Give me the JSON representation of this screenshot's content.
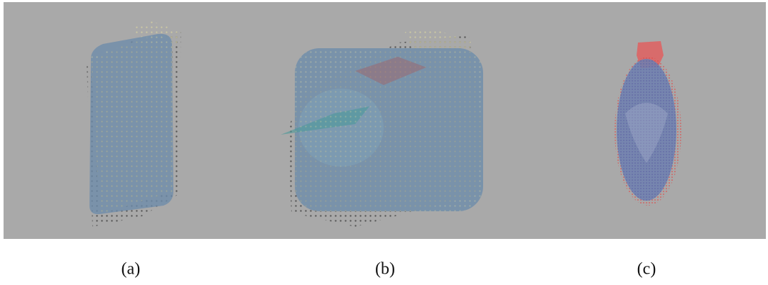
{
  "figure": {
    "subcaptions": [
      "(a)",
      "(b)",
      "(c)"
    ]
  }
}
